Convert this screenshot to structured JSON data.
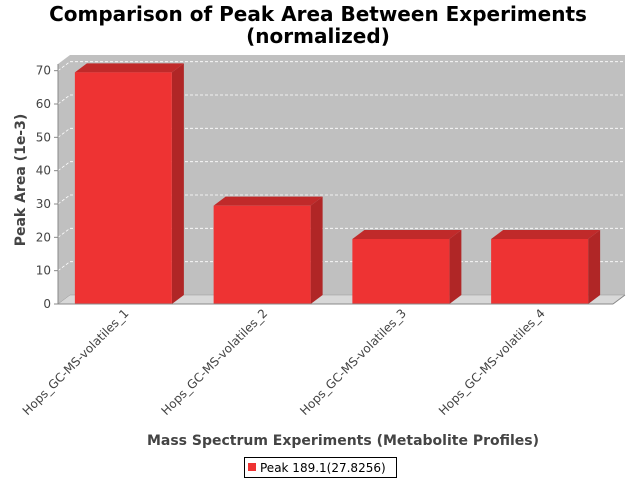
{
  "chart_data": {
    "type": "bar",
    "title": "Comparison of Peak Area Between Experiments",
    "subtitle": "(normalized)",
    "xlabel": "Mass Spectrum Experiments (Metabolite Profiles)",
    "ylabel": "Peak Area (1e-3)",
    "categories": [
      "Hops_GC-MS-volatiles_1",
      "Hops_GC-MS-volatiles_2",
      "Hops_GC-MS-volatiles_3",
      "Hops_GC-MS-volatiles_4"
    ],
    "series": [
      {
        "name": "Peak 189.1(27.8256)",
        "values": [
          69.5,
          29.5,
          19.5,
          19.5
        ]
      }
    ],
    "ylim": [
      0,
      72
    ],
    "yticks": [
      0,
      10,
      20,
      30,
      40,
      50,
      60,
      70
    ],
    "grid": true,
    "legend_position": "bottom",
    "colors": {
      "bar_front": "#ee3333",
      "bar_top": "#c02a2a",
      "bar_side": "#b02626",
      "plot_bg": "#c0c0c0",
      "floor": "#d8d8d8"
    }
  }
}
